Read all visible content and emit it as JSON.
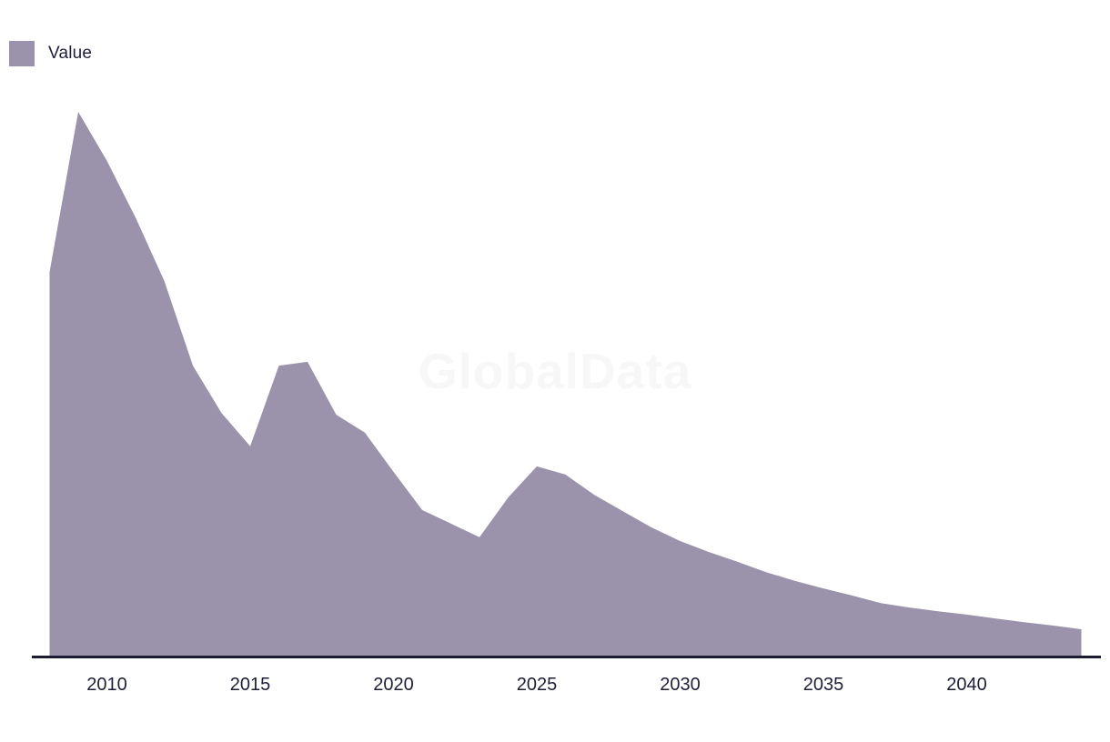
{
  "legend": {
    "label": "Value"
  },
  "watermark": "GlobalData",
  "colors": {
    "area": "#9a93ab",
    "axis": "#1c1c30",
    "text": "#1e1e38",
    "watermark": "#f7f7f7",
    "background": "#ffffff"
  },
  "chart_data": {
    "type": "area",
    "title": "",
    "xlabel": "",
    "ylabel": "",
    "x": [
      2008,
      2009,
      2010,
      2011,
      2012,
      2013,
      2014,
      2015,
      2016,
      2017,
      2018,
      2019,
      2020,
      2021,
      2022,
      2023,
      2024,
      2025,
      2026,
      2027,
      2028,
      2029,
      2030,
      2031,
      2032,
      2033,
      2034,
      2035,
      2036,
      2037,
      2038,
      2039,
      2040,
      2041,
      2042,
      2043,
      2044
    ],
    "series": [
      {
        "name": "Value",
        "values": [
          70.6,
          100.0,
          91.0,
          80.6,
          69.0,
          53.4,
          44.7,
          38.6,
          53.4,
          54.1,
          44.4,
          41.1,
          33.9,
          26.9,
          24.4,
          21.9,
          29.2,
          34.9,
          33.4,
          29.7,
          26.7,
          23.7,
          21.2,
          19.2,
          17.4,
          15.5,
          13.9,
          12.5,
          11.2,
          9.8,
          9.0,
          8.3,
          7.7,
          7.0,
          6.3,
          5.7,
          5.0
        ]
      }
    ],
    "value_scale": "relative, no y-axis shown (peak 2009 = 100)",
    "xticks": [
      2010,
      2015,
      2020,
      2025,
      2030,
      2035,
      2040
    ],
    "xlim": [
      2008,
      2044
    ],
    "ylim": [
      0,
      100
    ],
    "grid": false,
    "yaxis_visible": false,
    "legend_position": "top-left"
  }
}
